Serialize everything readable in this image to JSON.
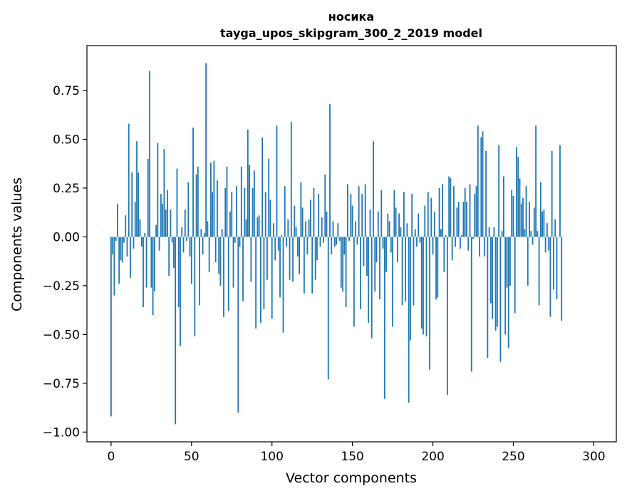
{
  "chart_data": {
    "type": "bar",
    "title_line1": "носика",
    "title_line2": "tayga_upos_skipgram_300_2_2019 model",
    "xlabel": "Vector components",
    "ylabel": "Components values",
    "xlim": [
      -15,
      314
    ],
    "ylim": [
      -1.05,
      0.98
    ],
    "xticks": [
      0,
      50,
      100,
      150,
      200,
      250,
      300
    ],
    "xtick_labels": [
      "0",
      "50",
      "100",
      "150",
      "200",
      "250",
      "300"
    ],
    "yticks": [
      -1.0,
      -0.75,
      -0.5,
      -0.25,
      0.0,
      0.25,
      0.5,
      0.75
    ],
    "ytick_labels": [
      "−1.00",
      "−0.75",
      "−0.50",
      "−0.25",
      "0.00",
      "0.25",
      "0.50",
      "0.75"
    ],
    "bar_color": "#1f77b4",
    "values": [
      -0.92,
      -0.09,
      -0.3,
      -0.02,
      0.17,
      -0.24,
      -0.12,
      -0.13,
      -0.03,
      0.11,
      -0.1,
      0.58,
      -0.21,
      0.33,
      -0.06,
      0.18,
      0.49,
      0.33,
      0.09,
      -0.05,
      -0.36,
      0.02,
      -0.26,
      0.4,
      0.85,
      -0.26,
      -0.4,
      -0.28,
      0.06,
      0.48,
      -0.07,
      0.22,
      0.17,
      0.45,
      0.14,
      0.24,
      -0.2,
      0.14,
      -0.03,
      -0.16,
      -0.96,
      0.35,
      -0.36,
      -0.56,
      0.05,
      -0.08,
      0.14,
      -0.02,
      0.28,
      -0.1,
      -0.24,
      0.56,
      -0.51,
      0.32,
      0.36,
      -0.35,
      0.04,
      -0.09,
      0.02,
      0.89,
      0.08,
      -0.18,
      0.38,
      0.23,
      0.39,
      -0.13,
      0.29,
      -0.19,
      -0.25,
      0.04,
      -0.41,
      0.25,
      0.36,
      -0.38,
      0.13,
      0.23,
      -0.26,
      -0.03,
      0.26,
      -0.9,
      -0.05,
      0.36,
      -0.33,
      0.25,
      0.09,
      0.55,
      0.37,
      -0.23,
      0.25,
      0.34,
      -0.47,
      0.1,
      0.11,
      -0.44,
      0.51,
      -0.37,
      0.23,
      -0.22,
      0.4,
      0.19,
      -0.42,
      0.07,
      -0.12,
      0.57,
      -0.07,
      -0.31,
      0.01,
      -0.49,
      0.26,
      -0.05,
      0.09,
      -0.22,
      0.59,
      -0.23,
      0.16,
      0.05,
      -0.1,
      -0.19,
      0.28,
      0.15,
      -0.29,
      0.08,
      -0.09,
      0.09,
      0.19,
      -0.29,
      0.25,
      -0.22,
      -0.12,
      0.22,
      -0.05,
      0.1,
      -0.03,
      0.32,
      0.13,
      -0.73,
      0.68,
      -0.09,
      0.08,
      -0.05,
      -0.04,
      0.07,
      -0.02,
      -0.26,
      -0.28,
      -0.09,
      -0.36,
      0.27,
      -0.02,
      0.22,
      0.16,
      -0.46,
      0.08,
      -0.04,
      0.26,
      -0.37,
      0.22,
      -0.15,
      0.27,
      -0.2,
      -0.44,
      0.14,
      -0.52,
      0.49,
      -0.28,
      -0.13,
      0.13,
      -0.32,
      0.24,
      -0.06,
      -0.83,
      -0.18,
      0.12,
      0.08,
      -0.08,
      -0.46,
      0.24,
      0.15,
      -0.13,
      0.12,
      0.05,
      -0.35,
      0.23,
      -0.33,
      0.07,
      -0.85,
      -0.53,
      0.22,
      -0.35,
      0.04,
      -0.05,
      0.12,
      -0.03,
      -0.47,
      -0.5,
      0.16,
      -0.51,
      0.23,
      -0.68,
      0.2,
      -0.09,
      0.13,
      -0.32,
      -0.31,
      0.25,
      0.04,
      0.27,
      -0.18,
      0.01,
      -0.81,
      0.31,
      0.3,
      -0.12,
      0.26,
      -0.05,
      0.15,
      0.18,
      -0.06,
      0.01,
      0.18,
      0.25,
      0.18,
      -0.07,
      0.27,
      -0.69,
      -0.01,
      0.22,
      0.26,
      0.57,
      -0.1,
      0.51,
      0.54,
      -0.1,
      0.44,
      -0.62,
      0.05,
      -0.34,
      -0.42,
      0.05,
      -0.48,
      -0.46,
      0.47,
      -0.64,
      0.03,
      0.31,
      -0.5,
      -0.26,
      -0.57,
      -0.25,
      0.24,
      0.21,
      -0.39,
      0.46,
      0.41,
      0.3,
      0.17,
      0.2,
      0.04,
      0.26,
      -0.25,
      0.18,
      0.03,
      -0.04,
      0.15,
      0.57,
      0.03,
      -0.35,
      0.28,
      0.13,
      0.14,
      -0.08,
      0.07,
      -0.07,
      -0.41,
      0.44,
      -0.27,
      0.09,
      -0.32,
      0.0,
      0.47,
      -0.43
    ]
  }
}
